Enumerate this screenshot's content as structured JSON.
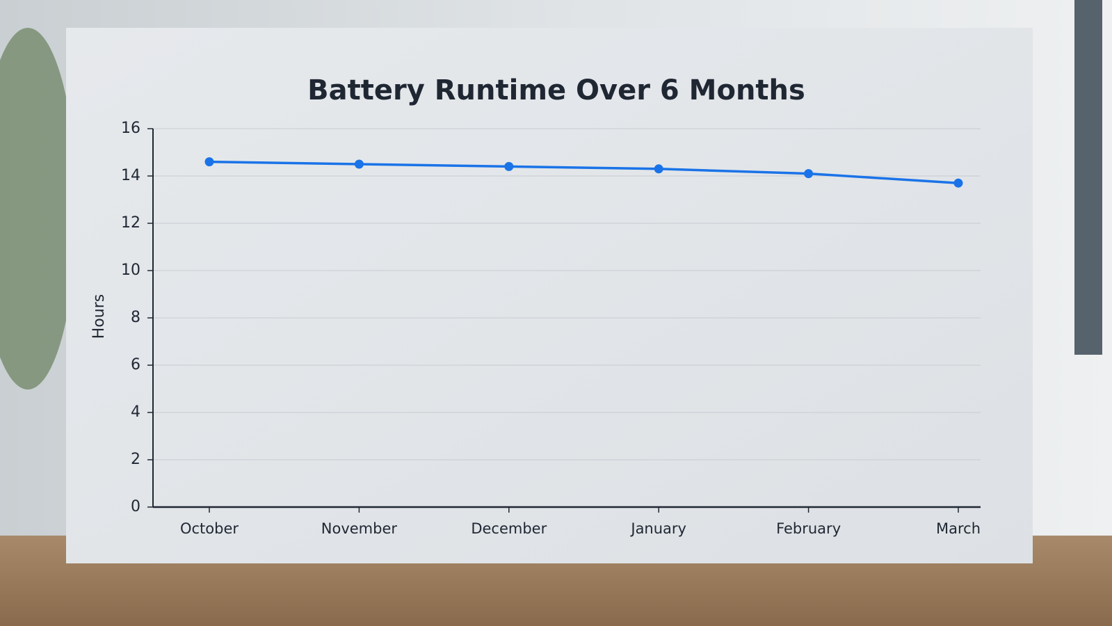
{
  "chart_data": {
    "type": "line",
    "title": "Battery Runtime Over 6 Months",
    "y_label": "Hours",
    "categories": [
      "October",
      "November",
      "December",
      "January",
      "February",
      "March"
    ],
    "series": [
      {
        "name": "Battery Runtime",
        "color": "#1a73e8",
        "values": [
          14.6,
          14.5,
          14.4,
          14.3,
          14.1,
          13.7
        ]
      }
    ],
    "ylim": [
      0,
      16
    ],
    "yticks": [
      0,
      2,
      4,
      6,
      8,
      10,
      12,
      14,
      16
    ],
    "grid": true
  }
}
